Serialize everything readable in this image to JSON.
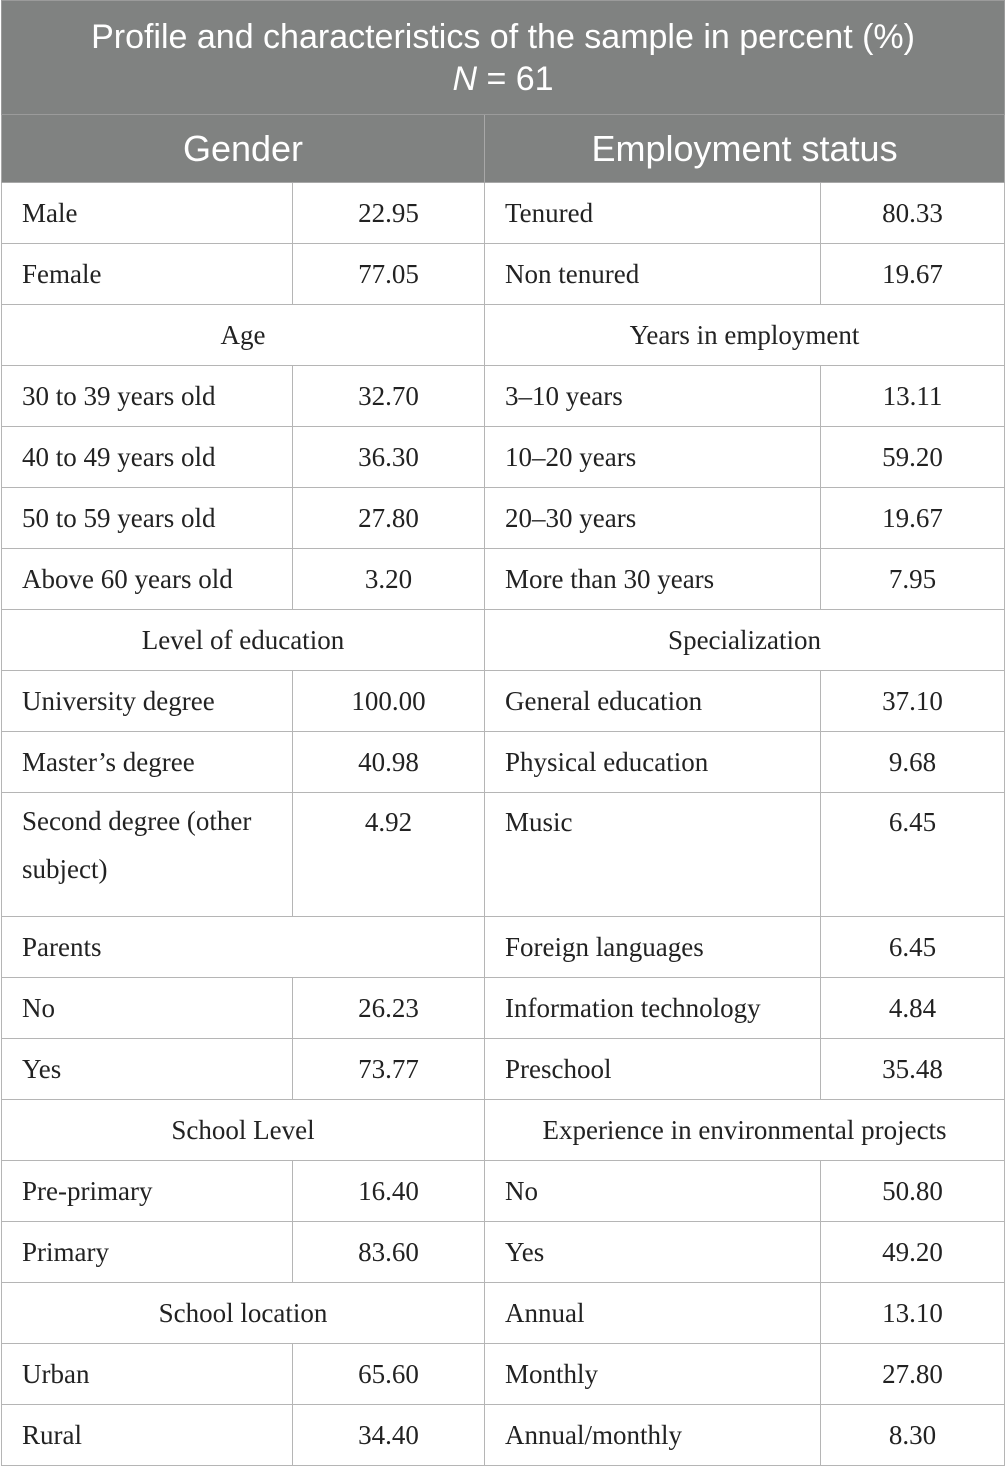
{
  "title": {
    "line1": "Profile and characteristics of the sample in percent (%)",
    "n_symbol": "N",
    "n_rest": " = 61"
  },
  "headers": {
    "left": "Gender",
    "right": "Employment status"
  },
  "rows": [
    {
      "l_label": "Male",
      "l_value": "22.95",
      "r_label": "Tenured",
      "r_value": "80.33"
    },
    {
      "l_label": "Female",
      "l_value": "77.05",
      "r_label": "Non tenured",
      "r_value": "19.67"
    },
    {
      "l_section": "Age",
      "r_section": "Years in employment"
    },
    {
      "l_label": "30 to 39 years old",
      "l_value": "32.70",
      "r_label": "3–10 years",
      "r_value": "13.11"
    },
    {
      "l_label": "40 to 49 years old",
      "l_value": "36.30",
      "r_label": "10–20 years",
      "r_value": "59.20"
    },
    {
      "l_label": "50 to 59 years old",
      "l_value": "27.80",
      "r_label": "20–30 years",
      "r_value": "19.67"
    },
    {
      "l_label": "Above 60 years old",
      "l_value": "3.20",
      "r_label": "More than 30 years",
      "r_value": "7.95"
    },
    {
      "l_section": "Level of education",
      "r_section": "Specialization"
    },
    {
      "l_label": "University degree",
      "l_value": "100.00",
      "r_label": "General education",
      "r_value": "37.10"
    },
    {
      "l_label": "Master’s degree",
      "l_value": "40.98",
      "r_label": "Physical education",
      "r_value": "9.68"
    },
    {
      "l_label": "Second degree (other subject)",
      "l_value": "4.92",
      "r_label": "Music",
      "r_value": "6.45"
    },
    {
      "l_span": "Parents",
      "r_label": "Foreign languages",
      "r_value": "6.45"
    },
    {
      "l_label": "No",
      "l_value": "26.23",
      "r_label": "Information technology",
      "r_value": "4.84"
    },
    {
      "l_label": "Yes",
      "l_value": "73.77",
      "r_label": "Preschool",
      "r_value": "35.48"
    },
    {
      "l_section": "School Level",
      "r_section": "Experience in environmental projects"
    },
    {
      "l_label": "Pre-primary",
      "l_value": "16.40",
      "r_label": "No",
      "r_value": "50.80"
    },
    {
      "l_label": "Primary",
      "l_value": "83.60",
      "r_label": "Yes",
      "r_value": "49.20"
    },
    {
      "l_section": "School location",
      "r_label": "Annual",
      "r_value": "13.10"
    },
    {
      "l_label": "Urban",
      "l_value": "65.60",
      "r_label": "Monthly",
      "r_value": "27.80"
    },
    {
      "l_label": "Rural",
      "l_value": "34.40",
      "r_label": "Annual/monthly",
      "r_value": "8.30"
    }
  ]
}
